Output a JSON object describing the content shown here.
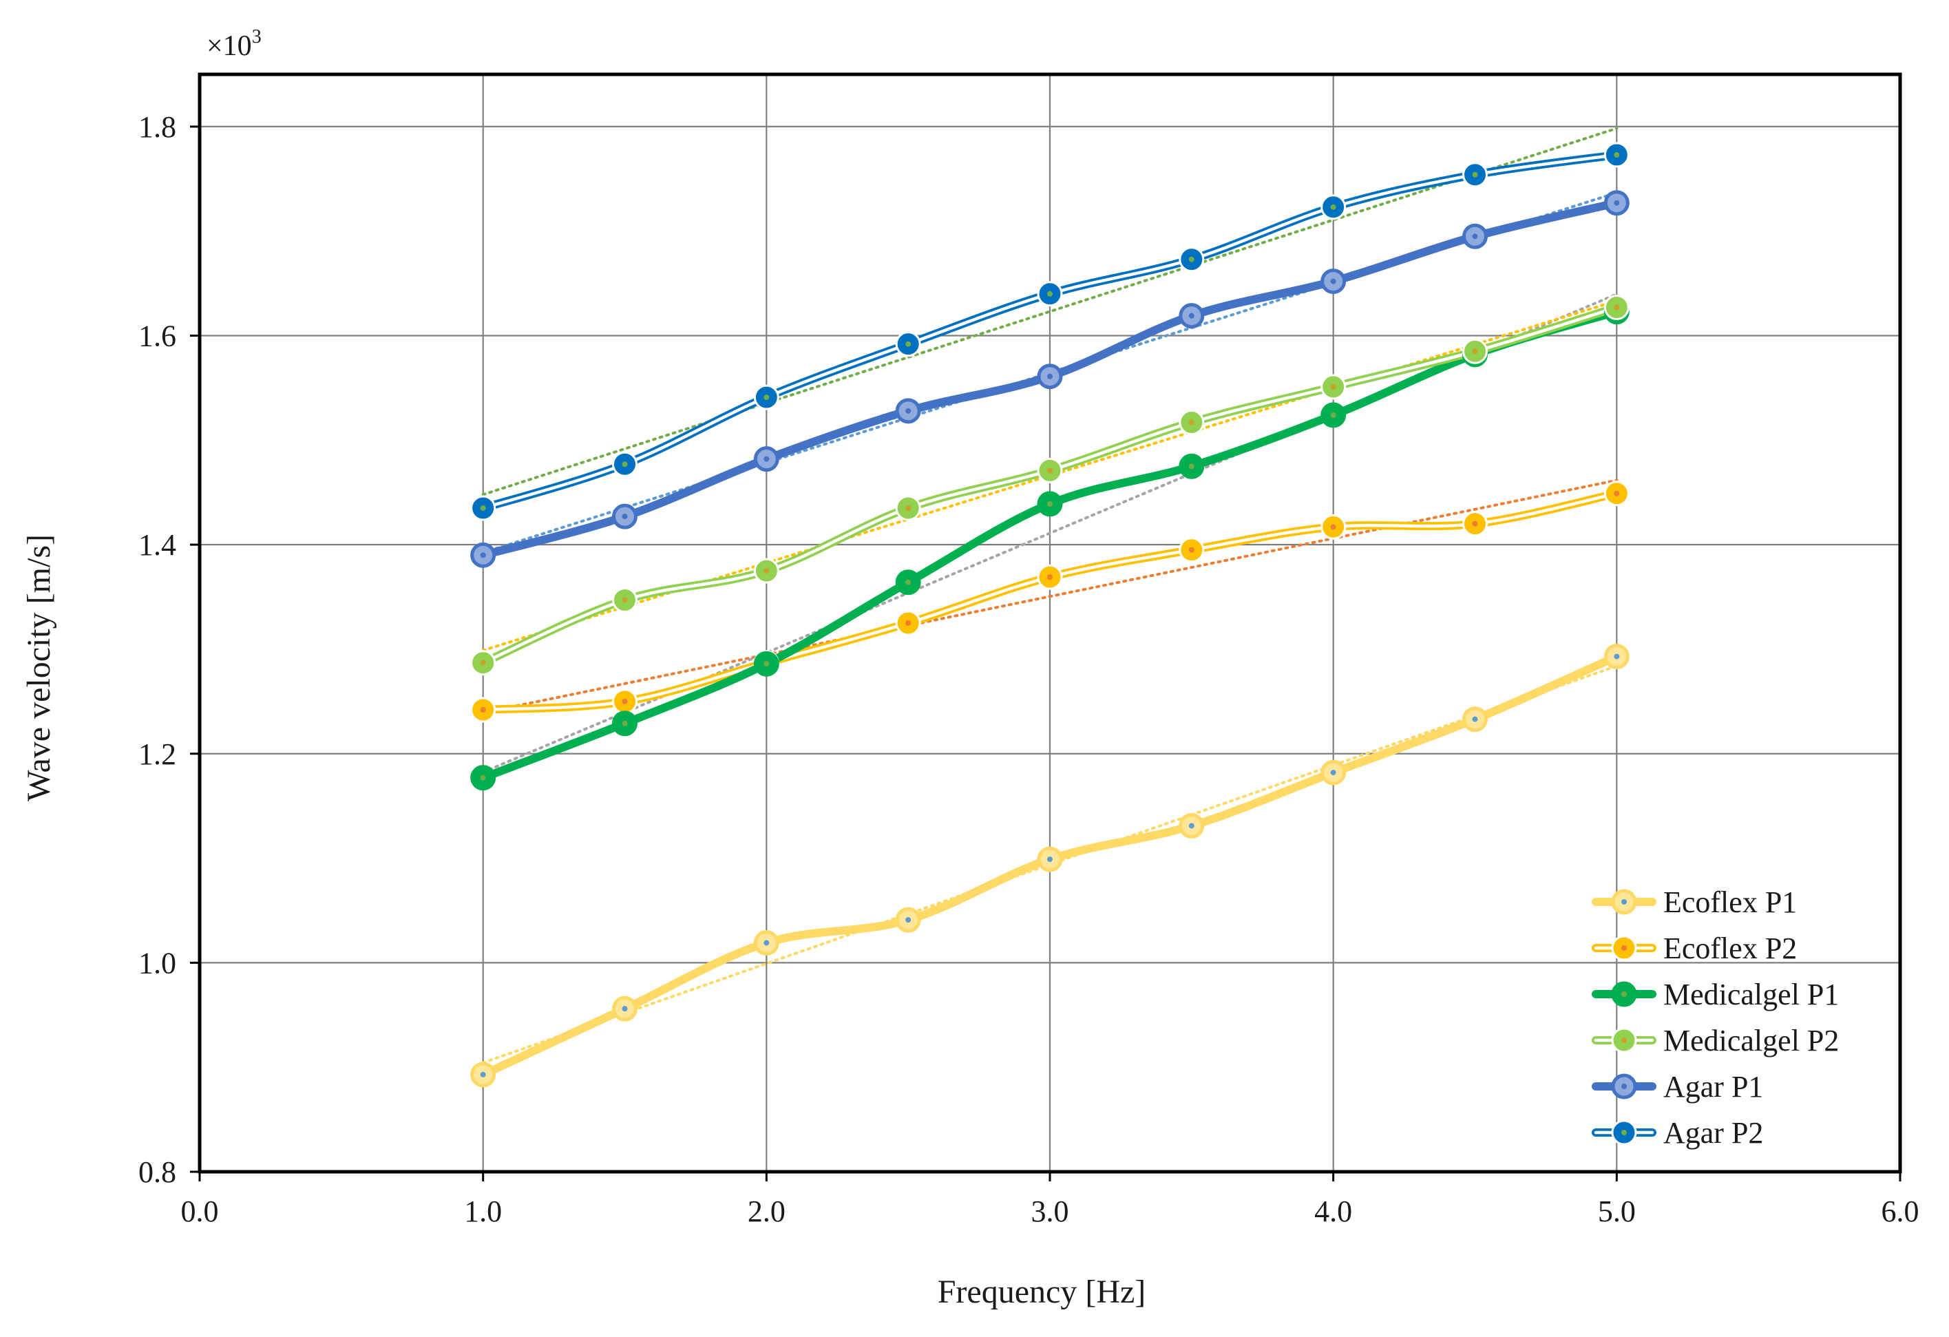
{
  "chart_data": {
    "type": "line",
    "title": "",
    "xlabel": "Frequency [Hz]",
    "ylabel": "Wave velocity [m/s]",
    "y_multiplier_label": "×10",
    "y_multiplier_exponent": "3",
    "xlim": [
      0.0,
      6.0
    ],
    "ylim": [
      0.8,
      1.85
    ],
    "x_ticks": [
      0.0,
      1.0,
      2.0,
      3.0,
      4.0,
      5.0,
      6.0
    ],
    "x_tick_labels": [
      "0.0",
      "1.0",
      "2.0",
      "3.0",
      "4.0",
      "5.0",
      "6.0"
    ],
    "y_ticks": [
      0.8,
      1.0,
      1.2,
      1.4,
      1.6,
      1.8
    ],
    "y_tick_labels": [
      "0.8",
      "1.0",
      "1.2",
      "1.4",
      "1.6",
      "1.8"
    ],
    "grid": true,
    "legend_position": "bottom-right",
    "x": [
      1.0,
      1.5,
      2.0,
      2.5,
      3.0,
      3.5,
      4.0,
      4.5,
      5.0
    ],
    "series": [
      {
        "name": "Ecoflex P1",
        "style": "thick",
        "color": "#ffd966",
        "marker_face": "#ffe699",
        "dot_color": "#5b9bd5",
        "trend_color": "#ffd966",
        "values": [
          0.893,
          0.956,
          1.019,
          1.041,
          1.099,
          1.131,
          1.182,
          1.233,
          1.293
        ]
      },
      {
        "name": "Ecoflex P2",
        "style": "double",
        "color": "#ffc000",
        "marker_face": "#ffc000",
        "dot_color": "#ed7d31",
        "trend_color": "#ed7d31",
        "values": [
          1.242,
          1.25,
          1.287,
          1.325,
          1.369,
          1.395,
          1.417,
          1.42,
          1.449
        ]
      },
      {
        "name": "Medicalgel P1",
        "style": "thick",
        "color": "#00b050",
        "marker_face": "#00b050",
        "dot_color": "#70ad47",
        "trend_color": "#a5a5a5",
        "values": [
          1.177,
          1.229,
          1.286,
          1.364,
          1.439,
          1.475,
          1.524,
          1.582,
          1.623
        ]
      },
      {
        "name": "Medicalgel P2",
        "style": "double",
        "color": "#92d050",
        "marker_face": "#92d050",
        "dot_color": "#c9a227",
        "trend_color": "#ffc000",
        "values": [
          1.287,
          1.347,
          1.375,
          1.435,
          1.471,
          1.517,
          1.551,
          1.585,
          1.627
        ]
      },
      {
        "name": "Agar P1",
        "style": "thick",
        "color": "#4472c4",
        "marker_face": "#8faadc",
        "dot_color": "#4472c4",
        "trend_color": "#5b9bd5",
        "values": [
          1.39,
          1.427,
          1.482,
          1.528,
          1.561,
          1.619,
          1.652,
          1.695,
          1.727
        ]
      },
      {
        "name": "Agar P2",
        "style": "double",
        "color": "#0070c0",
        "marker_face": "#0070c0",
        "dot_color": "#70ad47",
        "trend_color": "#70ad47",
        "values": [
          1.435,
          1.477,
          1.541,
          1.592,
          1.64,
          1.673,
          1.723,
          1.754,
          1.773
        ]
      }
    ]
  }
}
